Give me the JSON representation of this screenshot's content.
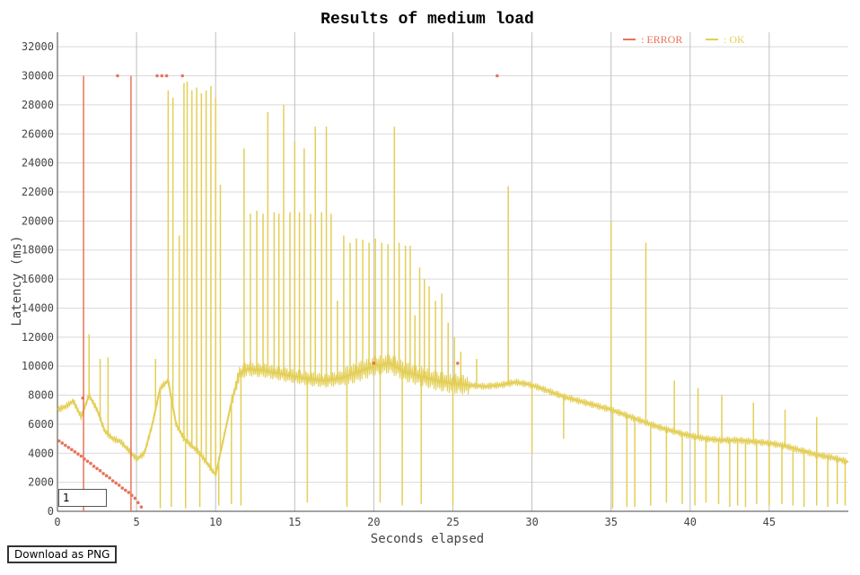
{
  "chart_data": {
    "type": "line",
    "title": "Results of medium load",
    "xlabel": "Seconds elapsed",
    "ylabel": "Latency (ms)",
    "xlim": [
      0,
      50
    ],
    "ylim": [
      0,
      33000
    ],
    "xticks": [
      0,
      5,
      10,
      15,
      20,
      25,
      30,
      35,
      40,
      45
    ],
    "yticks": [
      0,
      2000,
      4000,
      6000,
      8000,
      10000,
      12000,
      14000,
      16000,
      18000,
      20000,
      22000,
      24000,
      26000,
      28000,
      30000,
      32000
    ],
    "grid": true,
    "legend_position": "top-right",
    "series": [
      {
        "name": "ERROR",
        "color": "#e8735a",
        "points": [
          [
            0.1,
            4850
          ],
          [
            0.3,
            4700
          ],
          [
            0.5,
            4550
          ],
          [
            0.7,
            4400
          ],
          [
            0.9,
            4250
          ],
          [
            1.1,
            4100
          ],
          [
            1.3,
            3950
          ],
          [
            1.5,
            3800
          ],
          [
            1.7,
            3600
          ],
          [
            1.9,
            3450
          ],
          [
            2.1,
            3300
          ],
          [
            2.3,
            3100
          ],
          [
            2.5,
            2950
          ],
          [
            2.7,
            2800
          ],
          [
            2.9,
            2600
          ],
          [
            3.1,
            2450
          ],
          [
            3.3,
            2300
          ],
          [
            3.5,
            2100
          ],
          [
            3.7,
            1950
          ],
          [
            3.9,
            1800
          ],
          [
            4.1,
            1600
          ],
          [
            4.3,
            1450
          ],
          [
            4.5,
            1300
          ],
          [
            4.7,
            1100
          ],
          [
            4.9,
            900
          ],
          [
            5.1,
            600
          ],
          [
            5.3,
            300
          ],
          [
            1.6,
            7800
          ],
          [
            3.8,
            30000
          ],
          [
            6.3,
            30000
          ],
          [
            6.6,
            30000
          ],
          [
            6.9,
            30000
          ],
          [
            7.9,
            30000
          ],
          [
            20.0,
            10200
          ],
          [
            25.3,
            10200
          ],
          [
            27.8,
            30000
          ]
        ],
        "spikes": [
          [
            1.65,
            30000
          ],
          [
            4.65,
            30000
          ]
        ]
      },
      {
        "name": "OK",
        "color": "#e3cf57",
        "baseline": [
          [
            0,
            7000
          ],
          [
            0.5,
            7200
          ],
          [
            1.0,
            7600
          ],
          [
            1.5,
            6500
          ],
          [
            2.0,
            8000
          ],
          [
            2.5,
            7000
          ],
          [
            3.0,
            5500
          ],
          [
            3.5,
            5000
          ],
          [
            4.0,
            4800
          ],
          [
            4.5,
            4200
          ],
          [
            5.0,
            3600
          ],
          [
            5.5,
            4000
          ],
          [
            6.0,
            6000
          ],
          [
            6.5,
            8500
          ],
          [
            7.0,
            9000
          ],
          [
            7.5,
            6000
          ],
          [
            8.0,
            5000
          ],
          [
            9.0,
            4000
          ],
          [
            10.0,
            2500
          ],
          [
            10.5,
            5000
          ],
          [
            11.0,
            7500
          ],
          [
            11.5,
            9500
          ],
          [
            12.0,
            9800
          ],
          [
            13.0,
            9700
          ],
          [
            14.0,
            9500
          ],
          [
            15.0,
            9300
          ],
          [
            16.0,
            9100
          ],
          [
            17.0,
            9000
          ],
          [
            18.0,
            9200
          ],
          [
            19.0,
            9600
          ],
          [
            20.0,
            10000
          ],
          [
            21.0,
            10200
          ],
          [
            22.0,
            9600
          ],
          [
            23.0,
            9300
          ],
          [
            24.0,
            9000
          ],
          [
            25.0,
            8800
          ],
          [
            26.0,
            8700
          ],
          [
            27.0,
            8600
          ],
          [
            28.0,
            8700
          ],
          [
            29.0,
            8900
          ],
          [
            30.0,
            8700
          ],
          [
            31.0,
            8300
          ],
          [
            32.0,
            7900
          ],
          [
            33.0,
            7600
          ],
          [
            34.0,
            7300
          ],
          [
            35.0,
            7000
          ],
          [
            36.0,
            6600
          ],
          [
            37.0,
            6200
          ],
          [
            38.0,
            5800
          ],
          [
            39.0,
            5500
          ],
          [
            40.0,
            5200
          ],
          [
            41.0,
            5000
          ],
          [
            42.0,
            4900
          ],
          [
            43.0,
            4900
          ],
          [
            44.0,
            4800
          ],
          [
            45.0,
            4700
          ],
          [
            46.0,
            4500
          ],
          [
            47.0,
            4200
          ],
          [
            48.0,
            3900
          ],
          [
            49.0,
            3700
          ],
          [
            50.0,
            3400
          ]
        ],
        "spikes": [
          [
            2.0,
            12200
          ],
          [
            2.7,
            10500
          ],
          [
            3.2,
            10600
          ],
          [
            5.5,
            4100
          ],
          [
            6.2,
            10500
          ],
          [
            7.0,
            29000
          ],
          [
            7.3,
            28500
          ],
          [
            7.7,
            19000
          ],
          [
            8.0,
            29500
          ],
          [
            8.2,
            29600
          ],
          [
            8.5,
            29000
          ],
          [
            8.8,
            29200
          ],
          [
            9.1,
            28800
          ],
          [
            9.4,
            29000
          ],
          [
            9.7,
            29300
          ],
          [
            10.0,
            28500
          ],
          [
            10.3,
            22500
          ],
          [
            11.8,
            25000
          ],
          [
            12.2,
            20500
          ],
          [
            12.6,
            20700
          ],
          [
            13.0,
            20500
          ],
          [
            13.3,
            27500
          ],
          [
            13.7,
            20600
          ],
          [
            14.0,
            20500
          ],
          [
            14.3,
            28000
          ],
          [
            14.7,
            20600
          ],
          [
            15.0,
            25500
          ],
          [
            15.3,
            20600
          ],
          [
            15.6,
            25000
          ],
          [
            16.0,
            20500
          ],
          [
            16.3,
            26500
          ],
          [
            16.7,
            20600
          ],
          [
            17.0,
            26500
          ],
          [
            17.3,
            20500
          ],
          [
            17.7,
            14500
          ],
          [
            18.1,
            19000
          ],
          [
            18.5,
            18500
          ],
          [
            18.9,
            18800
          ],
          [
            19.3,
            18700
          ],
          [
            19.7,
            18500
          ],
          [
            20.1,
            18800
          ],
          [
            20.5,
            18500
          ],
          [
            20.9,
            18400
          ],
          [
            21.3,
            26500
          ],
          [
            21.6,
            18500
          ],
          [
            22.0,
            18300
          ],
          [
            22.3,
            18300
          ],
          [
            22.6,
            13500
          ],
          [
            22.9,
            16800
          ],
          [
            23.2,
            16000
          ],
          [
            23.5,
            15500
          ],
          [
            23.9,
            14500
          ],
          [
            24.3,
            15000
          ],
          [
            24.7,
            13000
          ],
          [
            25.1,
            12000
          ],
          [
            25.5,
            11000
          ],
          [
            26.5,
            10500
          ],
          [
            28.5,
            22400
          ],
          [
            35.0,
            20000
          ],
          [
            37.2,
            18500
          ],
          [
            39.0,
            9000
          ],
          [
            40.5,
            8500
          ],
          [
            42.0,
            8000
          ],
          [
            44.0,
            7500
          ],
          [
            46.0,
            7000
          ],
          [
            48.0,
            6500
          ]
        ],
        "drops": [
          [
            6.5,
            200
          ],
          [
            7.2,
            300
          ],
          [
            8.1,
            200
          ],
          [
            9.0,
            300
          ],
          [
            10.2,
            400
          ],
          [
            11.0,
            500
          ],
          [
            11.6,
            400
          ],
          [
            15.8,
            600
          ],
          [
            18.3,
            300
          ],
          [
            20.4,
            600
          ],
          [
            21.8,
            400
          ],
          [
            23.0,
            500
          ],
          [
            25.0,
            400
          ],
          [
            30.0,
            4000
          ],
          [
            32.0,
            5000
          ],
          [
            35.1,
            200
          ],
          [
            36.0,
            300
          ],
          [
            36.5,
            300
          ],
          [
            37.5,
            400
          ],
          [
            38.5,
            600
          ],
          [
            39.5,
            500
          ],
          [
            40.3,
            400
          ],
          [
            41.0,
            600
          ],
          [
            41.8,
            500
          ],
          [
            42.5,
            300
          ],
          [
            43.0,
            400
          ],
          [
            43.5,
            300
          ],
          [
            44.2,
            500
          ],
          [
            45.0,
            400
          ],
          [
            45.8,
            500
          ],
          [
            46.5,
            400
          ],
          [
            47.2,
            300
          ],
          [
            48.0,
            400
          ],
          [
            48.7,
            300
          ],
          [
            49.3,
            500
          ],
          [
            49.8,
            400
          ]
        ]
      }
    ]
  },
  "legend": {
    "error_label": ": ERROR",
    "ok_label": ": OK",
    "error_color": "#e8735a",
    "ok_color": "#e3cf57"
  },
  "controls": {
    "input_value": "1",
    "download_label": "Download as PNG"
  }
}
